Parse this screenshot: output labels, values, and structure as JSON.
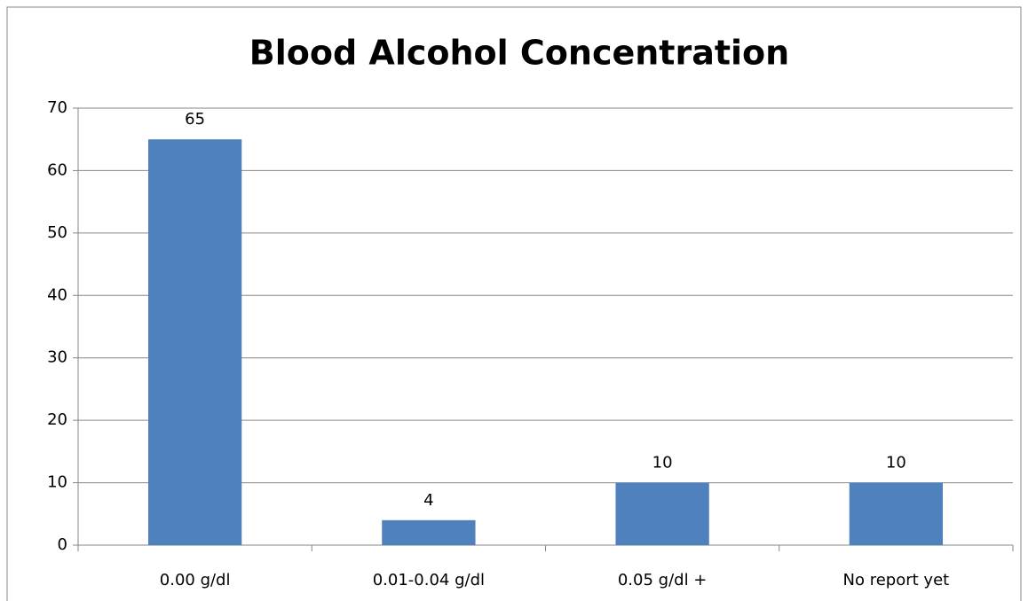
{
  "chart_data": {
    "type": "bar",
    "title": "Blood Alcohol Concentration",
    "categories": [
      "0.00 g/dl",
      "0.01-0.04 g/dl",
      "0.05 g/dl +",
      "No report yet"
    ],
    "values": [
      65,
      4,
      10,
      10
    ],
    "color": "#4f81bd",
    "ylim": [
      0,
      70
    ],
    "yticks": [
      0,
      10,
      20,
      30,
      40,
      50,
      60,
      70
    ],
    "grid": true
  }
}
